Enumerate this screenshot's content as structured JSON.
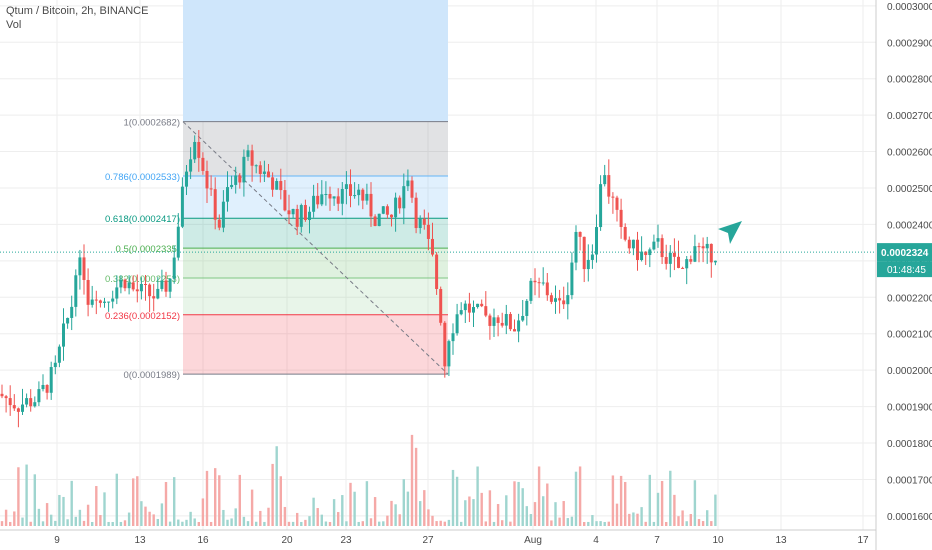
{
  "chart_data": {
    "type": "candlestick",
    "symbol": "Qtum / Bitcoin, 2h, BINANCE",
    "volume_label": "Vol",
    "y_ticks": [
      "0.0001600",
      "0.0001700",
      "0.0001800",
      "0.0001900",
      "0.0002000",
      "0.0002100",
      "0.0002200",
      "0.0002300",
      "0.0002400",
      "0.0002500",
      "0.0002600",
      "0.0002700",
      "0.0002800",
      "0.0002900",
      "0.0003000"
    ],
    "x_ticks": [
      "9",
      "13",
      "16",
      "20",
      "23",
      "27",
      "Aug",
      "4",
      "7",
      "10",
      "13",
      "17"
    ],
    "ylim": [
      0.0001575,
      0.0003005
    ],
    "price_label": "0.0002324",
    "countdown_label": "01:48:45",
    "last_price": 0.0002324,
    "fib": {
      "levels": [
        {
          "ratio": 1,
          "label": "1(0.0002682)",
          "price": 0.0002682
        },
        {
          "ratio": 0.786,
          "label": "0.786(0.0002533)",
          "price": 0.0002533
        },
        {
          "ratio": 0.618,
          "label": "0.618(0.0002417)",
          "price": 0.0002417
        },
        {
          "ratio": 0.5,
          "label": "0.5(0.0002335)",
          "price": 0.0002335
        },
        {
          "ratio": 0.382,
          "label": "0.382(0.0002253)",
          "price": 0.0002253
        },
        {
          "ratio": 0.236,
          "label": "0.236(0.0002152)",
          "price": 0.0002152
        },
        {
          "ratio": 0,
          "label": "0(0.0001989)",
          "price": 0.0001989
        }
      ]
    },
    "price_path": [
      [
        0,
        0.0001935
      ],
      [
        5,
        0.0001905
      ],
      [
        10,
        0.0001925
      ],
      [
        14,
        0.0002
      ],
      [
        16,
        0.00021
      ],
      [
        18,
        0.000218
      ],
      [
        19,
        0.000229
      ],
      [
        21,
        0.000227
      ],
      [
        22,
        0.00022
      ],
      [
        24,
        0.000222
      ],
      [
        25,
        0.0002185
      ],
      [
        28,
        0.000222
      ],
      [
        31,
        0.000225
      ],
      [
        33,
        0.000222
      ],
      [
        36,
        0.000221
      ],
      [
        39,
        0.00022
      ],
      [
        42,
        0.000225
      ],
      [
        44,
        0.00024
      ],
      [
        46,
        0.000256
      ],
      [
        48,
        0.000265
      ],
      [
        50,
        0.000256
      ],
      [
        52,
        0.000247
      ],
      [
        54,
        0.00024
      ],
      [
        56,
        0.000249
      ],
      [
        58,
        0.000252
      ],
      [
        61,
        0.000258
      ],
      [
        64,
        0.000255
      ],
      [
        67,
        0.000252
      ],
      [
        70,
        0.000245
      ],
      [
        73,
        0.000242
      ],
      [
        76,
        0.000244
      ],
      [
        80,
        0.00025
      ],
      [
        84,
        0.000248
      ],
      [
        88,
        0.000249
      ],
      [
        92,
        0.000242
      ],
      [
        96,
        0.000242
      ],
      [
        99,
        0.00025
      ],
      [
        100,
        0.000254
      ],
      [
        102,
        0.000242
      ],
      [
        104,
        0.000238
      ],
      [
        106,
        0.00023
      ],
      [
        107,
        0.000223
      ],
      [
        108,
        0.000215
      ],
      [
        109,
        0.000202
      ],
      [
        110,
        0.00021
      ],
      [
        113,
        0.000218
      ],
      [
        116,
        0.000216
      ],
      [
        119,
        0.000214
      ],
      [
        122,
        0.000215
      ],
      [
        124,
        0.000213
      ],
      [
        126,
        0.000212
      ],
      [
        128,
        0.000217
      ],
      [
        130,
        0.000222
      ],
      [
        133,
        0.000223
      ],
      [
        135,
        0.00022
      ],
      [
        137,
        0.000217
      ],
      [
        139,
        0.000223
      ],
      [
        140,
        0.00023
      ],
      [
        141,
        0.000238
      ],
      [
        143,
        0.00023
      ],
      [
        145,
        0.000233
      ],
      [
        146,
        0.000242
      ],
      [
        147,
        0.00025
      ],
      [
        148,
        0.000255
      ],
      [
        149,
        0.000249
      ],
      [
        150,
        0.000246
      ],
      [
        152,
        0.000237
      ],
      [
        155,
        0.000233
      ],
      [
        158,
        0.000231
      ],
      [
        161,
        0.000234
      ],
      [
        164,
        0.00023
      ],
      [
        167,
        0.000227
      ],
      [
        170,
        0.000235
      ],
      [
        172,
        0.000231
      ],
      [
        174,
        0.0002324
      ]
    ]
  },
  "colors": {
    "up": "#26a69a",
    "down": "#ef5350",
    "vol_up": "#9fd5cf",
    "vol_down": "#f5a9a7",
    "grid": "#eeeeee",
    "price_line": "#26a69a",
    "arrow": "#26a69a"
  }
}
